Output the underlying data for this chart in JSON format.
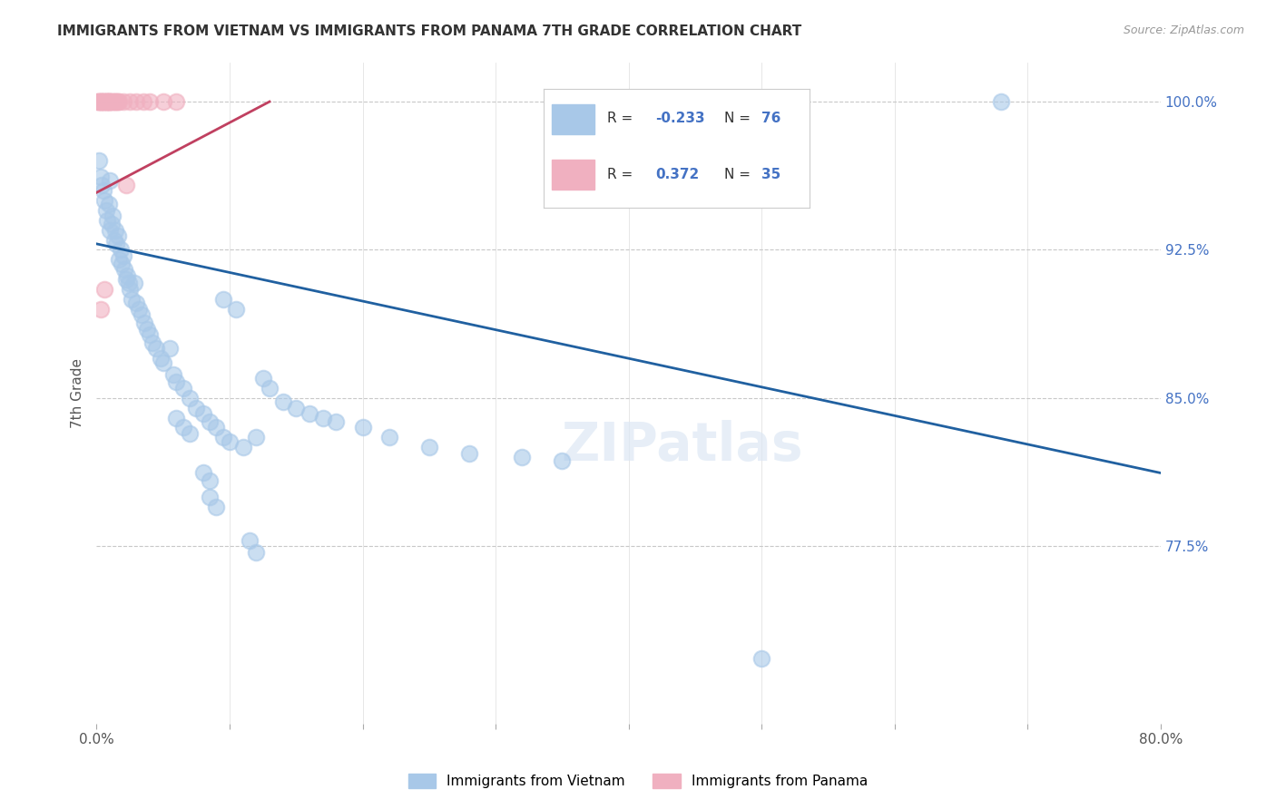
{
  "title": "IMMIGRANTS FROM VIETNAM VS IMMIGRANTS FROM PANAMA 7TH GRADE CORRELATION CHART",
  "source": "Source: ZipAtlas.com",
  "ylabel": "7th Grade",
  "ytick_labels": [
    "100.0%",
    "92.5%",
    "85.0%",
    "77.5%"
  ],
  "ytick_values": [
    1.0,
    0.925,
    0.85,
    0.775
  ],
  "background_color": "#ffffff",
  "grid_color": "#c8c8c8",
  "vietnam_color": "#a8c8e8",
  "panama_color": "#f0b0c0",
  "vietnam_label": "Immigrants from Vietnam",
  "panama_label": "Immigrants from Panama",
  "legend_R_vietnam": "-0.233",
  "legend_N_vietnam": "76",
  "legend_R_panama": "0.372",
  "legend_N_panama": "35",
  "trendline_vietnam_color": "#2060a0",
  "trendline_panama_color": "#c04060",
  "vietnam_scatter": [
    [
      0.002,
      0.97
    ],
    [
      0.003,
      0.962
    ],
    [
      0.004,
      0.958
    ],
    [
      0.005,
      0.955
    ],
    [
      0.006,
      0.95
    ],
    [
      0.007,
      0.945
    ],
    [
      0.008,
      0.94
    ],
    [
      0.009,
      0.948
    ],
    [
      0.01,
      0.96
    ],
    [
      0.01,
      0.935
    ],
    [
      0.011,
      0.938
    ],
    [
      0.012,
      0.942
    ],
    [
      0.013,
      0.93
    ],
    [
      0.014,
      0.935
    ],
    [
      0.015,
      0.928
    ],
    [
      0.016,
      0.932
    ],
    [
      0.017,
      0.92
    ],
    [
      0.018,
      0.925
    ],
    [
      0.019,
      0.918
    ],
    [
      0.02,
      0.922
    ],
    [
      0.021,
      0.915
    ],
    [
      0.022,
      0.91
    ],
    [
      0.023,
      0.912
    ],
    [
      0.024,
      0.908
    ],
    [
      0.025,
      0.905
    ],
    [
      0.026,
      0.9
    ],
    [
      0.028,
      0.908
    ],
    [
      0.03,
      0.898
    ],
    [
      0.032,
      0.895
    ],
    [
      0.034,
      0.892
    ],
    [
      0.036,
      0.888
    ],
    [
      0.038,
      0.885
    ],
    [
      0.04,
      0.882
    ],
    [
      0.042,
      0.878
    ],
    [
      0.045,
      0.875
    ],
    [
      0.048,
      0.87
    ],
    [
      0.05,
      0.868
    ],
    [
      0.055,
      0.875
    ],
    [
      0.058,
      0.862
    ],
    [
      0.06,
      0.858
    ],
    [
      0.065,
      0.855
    ],
    [
      0.07,
      0.85
    ],
    [
      0.075,
      0.845
    ],
    [
      0.08,
      0.842
    ],
    [
      0.085,
      0.838
    ],
    [
      0.09,
      0.835
    ],
    [
      0.095,
      0.83
    ],
    [
      0.1,
      0.828
    ],
    [
      0.11,
      0.825
    ],
    [
      0.12,
      0.83
    ],
    [
      0.125,
      0.86
    ],
    [
      0.13,
      0.855
    ],
    [
      0.14,
      0.848
    ],
    [
      0.15,
      0.845
    ],
    [
      0.16,
      0.842
    ],
    [
      0.17,
      0.84
    ],
    [
      0.18,
      0.838
    ],
    [
      0.2,
      0.835
    ],
    [
      0.22,
      0.83
    ],
    [
      0.25,
      0.825
    ],
    [
      0.28,
      0.822
    ],
    [
      0.32,
      0.82
    ],
    [
      0.35,
      0.818
    ],
    [
      0.095,
      0.9
    ],
    [
      0.105,
      0.895
    ],
    [
      0.08,
      0.812
    ],
    [
      0.085,
      0.808
    ],
    [
      0.115,
      0.778
    ],
    [
      0.12,
      0.772
    ],
    [
      0.085,
      0.8
    ],
    [
      0.09,
      0.795
    ],
    [
      0.5,
      0.718
    ],
    [
      0.68,
      1.0
    ],
    [
      0.06,
      0.84
    ],
    [
      0.065,
      0.835
    ],
    [
      0.07,
      0.832
    ]
  ],
  "panama_scatter": [
    [
      0.001,
      1.0
    ],
    [
      0.001,
      1.0
    ],
    [
      0.002,
      1.0
    ],
    [
      0.003,
      1.0
    ],
    [
      0.003,
      1.0
    ],
    [
      0.004,
      1.0
    ],
    [
      0.004,
      1.0
    ],
    [
      0.005,
      1.0
    ],
    [
      0.005,
      1.0
    ],
    [
      0.006,
      1.0
    ],
    [
      0.007,
      1.0
    ],
    [
      0.007,
      1.0
    ],
    [
      0.008,
      1.0
    ],
    [
      0.008,
      1.0
    ],
    [
      0.009,
      1.0
    ],
    [
      0.009,
      1.0
    ],
    [
      0.01,
      1.0
    ],
    [
      0.01,
      1.0
    ],
    [
      0.011,
      1.0
    ],
    [
      0.012,
      1.0
    ],
    [
      0.013,
      1.0
    ],
    [
      0.014,
      1.0
    ],
    [
      0.015,
      1.0
    ],
    [
      0.016,
      1.0
    ],
    [
      0.017,
      1.0
    ],
    [
      0.02,
      1.0
    ],
    [
      0.025,
      1.0
    ],
    [
      0.03,
      1.0
    ],
    [
      0.035,
      1.0
    ],
    [
      0.04,
      1.0
    ],
    [
      0.05,
      1.0
    ],
    [
      0.06,
      1.0
    ],
    [
      0.003,
      0.895
    ],
    [
      0.006,
      0.905
    ],
    [
      0.022,
      0.958
    ]
  ],
  "xmin": 0.0,
  "xmax": 0.8,
  "ymin": 0.685,
  "ymax": 1.02,
  "vietnam_trendline": [
    [
      0.0,
      0.928
    ],
    [
      0.8,
      0.812
    ]
  ],
  "panama_trendline": [
    [
      0.0,
      0.954
    ],
    [
      0.13,
      1.0
    ]
  ]
}
